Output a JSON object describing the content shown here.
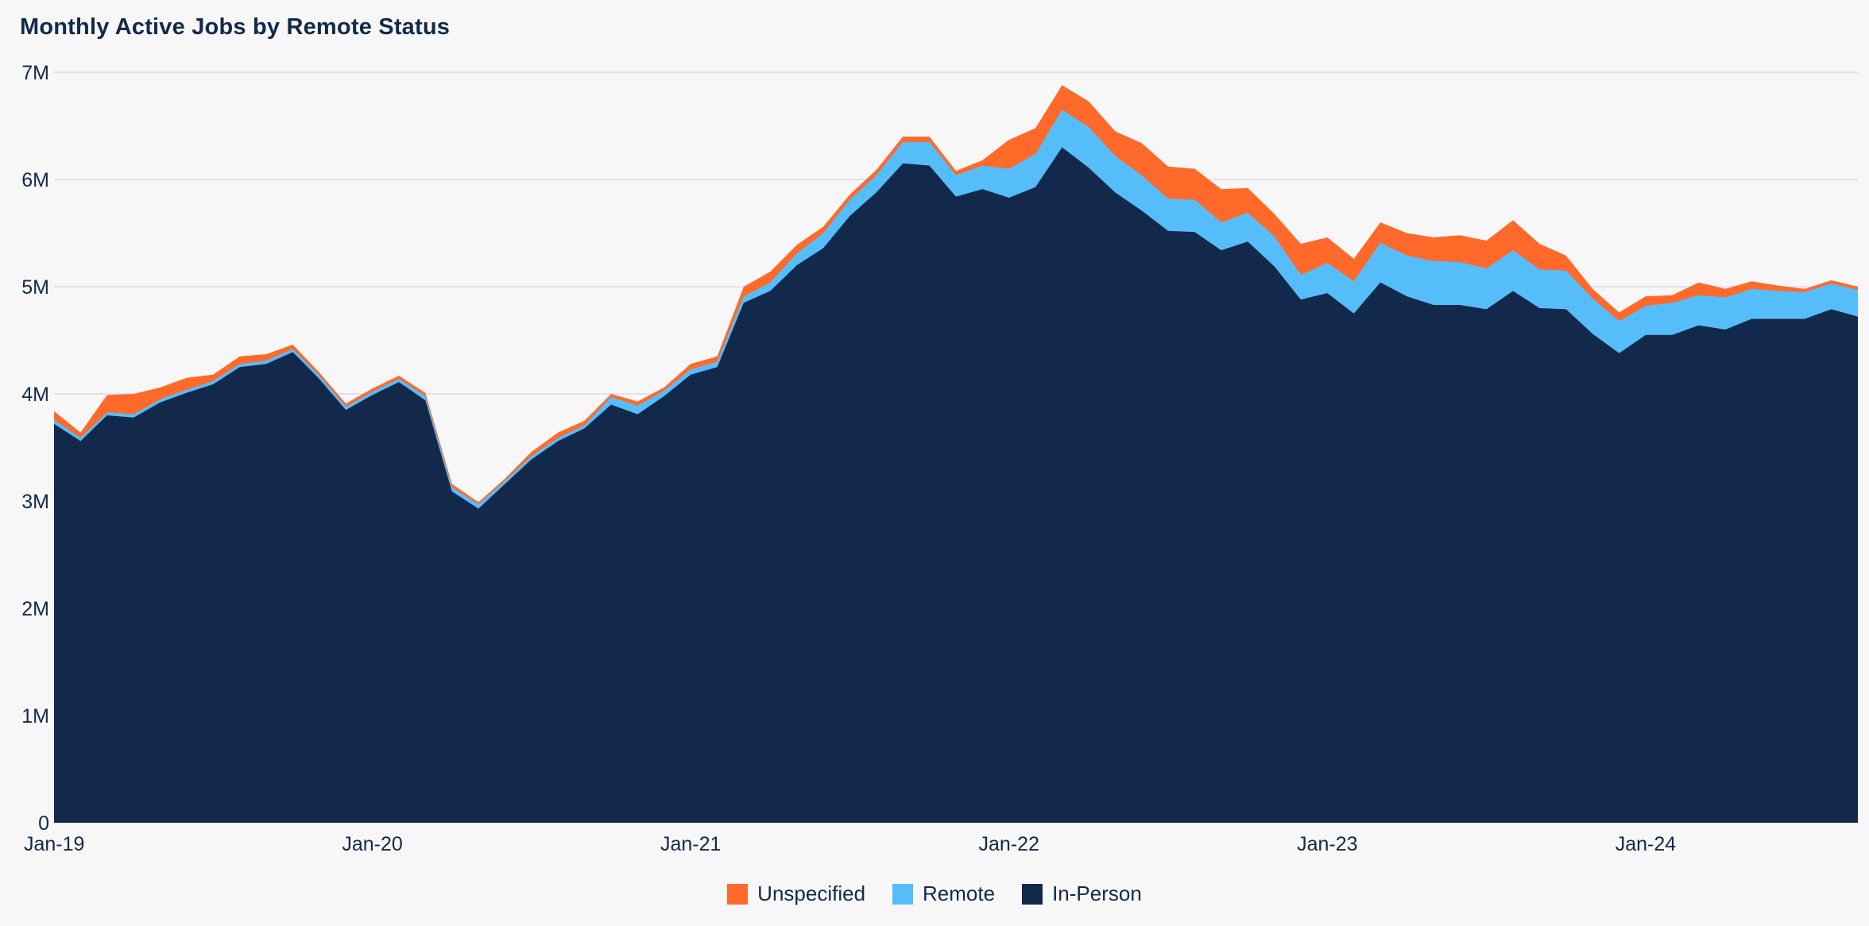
{
  "chart_data": {
    "type": "area",
    "stacked": true,
    "title": "Monthly Active Jobs by Remote Status",
    "xlabel": "",
    "ylabel": "",
    "ylim": [
      0,
      7000000
    ],
    "yticks": [
      0,
      1000000,
      2000000,
      3000000,
      4000000,
      5000000,
      6000000,
      7000000
    ],
    "ytick_labels": [
      "0",
      "1M",
      "2M",
      "3M",
      "4M",
      "5M",
      "6M",
      "7M"
    ],
    "xticks": [
      {
        "index": 0,
        "label": "Jan-19"
      },
      {
        "index": 12,
        "label": "Jan-20"
      },
      {
        "index": 24,
        "label": "Jan-21"
      },
      {
        "index": 36,
        "label": "Jan-22"
      },
      {
        "index": 48,
        "label": "Jan-23"
      },
      {
        "index": 60,
        "label": "Jan-24"
      }
    ],
    "x": [
      "2019-01",
      "2019-02",
      "2019-03",
      "2019-04",
      "2019-05",
      "2019-06",
      "2019-07",
      "2019-08",
      "2019-09",
      "2019-10",
      "2019-11",
      "2019-12",
      "2020-01",
      "2020-02",
      "2020-03",
      "2020-04",
      "2020-05",
      "2020-06",
      "2020-07",
      "2020-08",
      "2020-09",
      "2020-10",
      "2020-11",
      "2020-12",
      "2021-01",
      "2021-02",
      "2021-03",
      "2021-04",
      "2021-05",
      "2021-06",
      "2021-07",
      "2021-08",
      "2021-09",
      "2021-10",
      "2021-11",
      "2021-12",
      "2022-01",
      "2022-02",
      "2022-03",
      "2022-04",
      "2022-05",
      "2022-06",
      "2022-07",
      "2022-08",
      "2022-09",
      "2022-10",
      "2022-11",
      "2022-12",
      "2023-01",
      "2023-02",
      "2023-03",
      "2023-04",
      "2023-05",
      "2023-06",
      "2023-07",
      "2023-08",
      "2023-09",
      "2023-10",
      "2023-11",
      "2023-12",
      "2024-01",
      "2024-02",
      "2024-03",
      "2024-04",
      "2024-05",
      "2024-06",
      "2024-07",
      "2024-08",
      "2024-09"
    ],
    "series": [
      {
        "name": "In-Person",
        "color": "#13294b",
        "values": [
          3720000,
          3560000,
          3800000,
          3780000,
          3920000,
          4010000,
          4090000,
          4250000,
          4280000,
          4390000,
          4140000,
          3850000,
          3990000,
          4110000,
          3940000,
          3090000,
          2930000,
          3160000,
          3390000,
          3560000,
          3680000,
          3900000,
          3810000,
          3980000,
          4180000,
          4250000,
          4850000,
          4960000,
          5200000,
          5360000,
          5660000,
          5880000,
          6150000,
          6130000,
          5840000,
          5910000,
          5830000,
          5930000,
          6300000,
          6110000,
          5880000,
          5710000,
          5520000,
          5510000,
          5340000,
          5420000,
          5190000,
          4880000,
          4940000,
          4750000,
          5040000,
          4910000,
          4830000,
          4830000,
          4790000,
          4960000,
          4800000,
          4790000,
          4560000,
          4380000,
          4550000,
          4550000,
          4640000,
          4600000,
          4700000,
          4700000,
          4700000,
          4790000,
          4720000
        ]
      },
      {
        "name": "Remote",
        "color": "#56bdfb",
        "values": [
          40000,
          30000,
          30000,
          30000,
          30000,
          30000,
          30000,
          30000,
          30000,
          30000,
          30000,
          30000,
          30000,
          30000,
          40000,
          40000,
          40000,
          30000,
          30000,
          30000,
          30000,
          70000,
          80000,
          50000,
          50000,
          50000,
          60000,
          80000,
          110000,
          140000,
          150000,
          160000,
          200000,
          220000,
          200000,
          220000,
          270000,
          310000,
          350000,
          380000,
          340000,
          330000,
          300000,
          300000,
          260000,
          270000,
          280000,
          230000,
          280000,
          300000,
          370000,
          380000,
          410000,
          400000,
          380000,
          380000,
          360000,
          360000,
          330000,
          300000,
          270000,
          300000,
          280000,
          300000,
          280000,
          260000,
          250000,
          240000,
          250000
        ]
      },
      {
        "name": "Unspecified",
        "color": "#ff6a2b",
        "values": [
          80000,
          50000,
          160000,
          190000,
          110000,
          110000,
          60000,
          70000,
          60000,
          40000,
          30000,
          30000,
          30000,
          30000,
          30000,
          30000,
          20000,
          20000,
          40000,
          50000,
          40000,
          30000,
          40000,
          30000,
          50000,
          50000,
          90000,
          100000,
          80000,
          60000,
          50000,
          50000,
          50000,
          50000,
          40000,
          50000,
          270000,
          240000,
          230000,
          240000,
          230000,
          300000,
          300000,
          290000,
          310000,
          230000,
          210000,
          290000,
          240000,
          210000,
          190000,
          210000,
          220000,
          250000,
          260000,
          280000,
          240000,
          140000,
          90000,
          80000,
          90000,
          70000,
          120000,
          80000,
          70000,
          50000,
          30000,
          30000,
          30000
        ]
      }
    ],
    "legend": {
      "position": "bottom-center",
      "entries": [
        "Unspecified",
        "Remote",
        "In-Person"
      ]
    },
    "grid": {
      "horizontal": true,
      "vertical": false,
      "color": "#d9dcf0"
    }
  }
}
